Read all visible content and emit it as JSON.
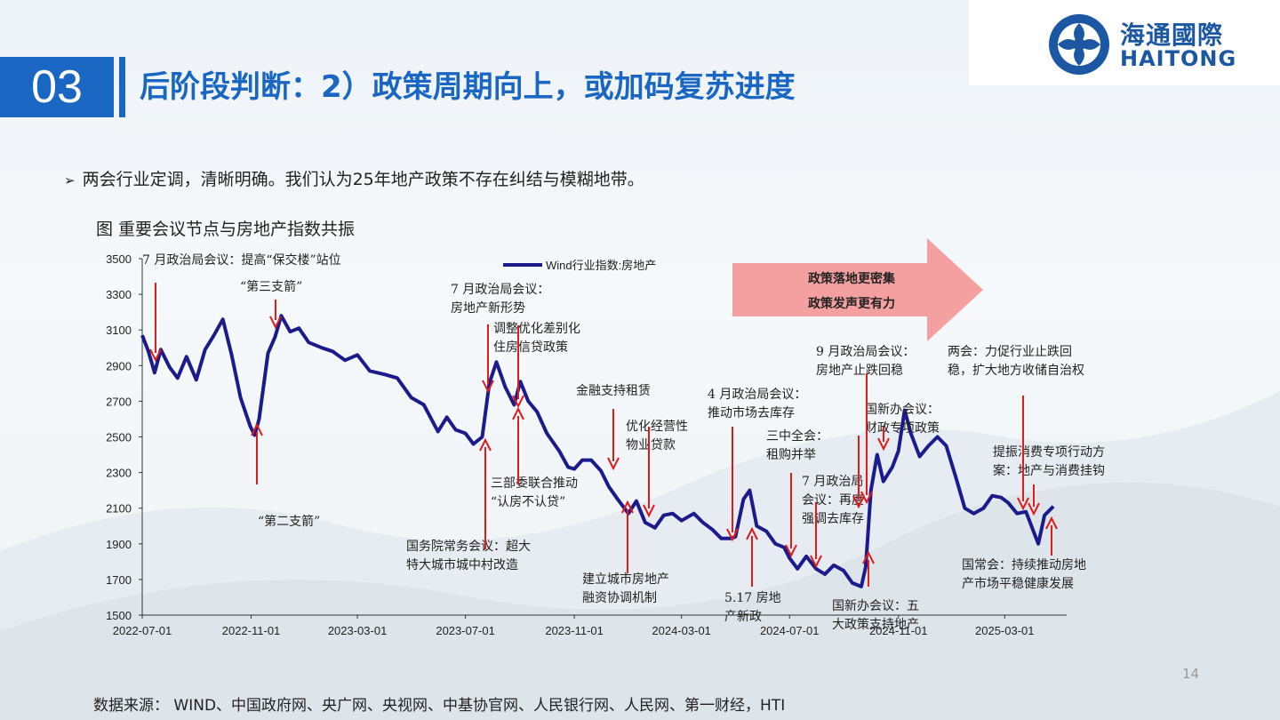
{
  "logo": {
    "cn": "海通國際",
    "en": "HAITONG"
  },
  "section": {
    "number": "03",
    "title": "后阶段判断：2）政策周期向上，或加码复苏进度"
  },
  "bullet": "两会行业定调，清晰明确。我们认为25年地产政策不存在纠结与模糊地带。",
  "figure_title": "图 重要会议节点与房地产指数共振",
  "page_number": "14",
  "source": "数据来源： WIND、中国政府网、央广网、央视网、中基协官网、人民银行网、人民网、第一财经，HTI",
  "colors": {
    "brand": "#1967c2",
    "series": "#1c1b8c",
    "arrow": "#e11a1a",
    "banner": "#f5a0a0"
  },
  "chart_data": {
    "type": "line",
    "legend": "Wind行业指数:房地产",
    "ylim": [
      1500,
      3500
    ],
    "yticks": [
      1500,
      1700,
      1900,
      2100,
      2300,
      2500,
      2700,
      2900,
      3100,
      3300,
      3500
    ],
    "xticks": [
      "2022-07-01",
      "2022-11-01",
      "2023-03-01",
      "2023-07-01",
      "2023-11-01",
      "2024-03-01",
      "2024-07-01",
      "2024-11-01",
      "2025-03-01"
    ],
    "series": [
      {
        "name": "Wind行业指数:房地产",
        "points": [
          [
            "2022-07-01",
            3070
          ],
          [
            "2022-07-08",
            2980
          ],
          [
            "2022-07-15",
            2860
          ],
          [
            "2022-07-22",
            2990
          ],
          [
            "2022-08-01",
            2890
          ],
          [
            "2022-08-10",
            2830
          ],
          [
            "2022-08-20",
            2950
          ],
          [
            "2022-08-31",
            2820
          ],
          [
            "2022-09-10",
            2990
          ],
          [
            "2022-09-20",
            3070
          ],
          [
            "2022-09-30",
            3160
          ],
          [
            "2022-10-10",
            2960
          ],
          [
            "2022-10-20",
            2720
          ],
          [
            "2022-10-31",
            2560
          ],
          [
            "2022-11-05",
            2510
          ],
          [
            "2022-11-10",
            2600
          ],
          [
            "2022-11-20",
            2970
          ],
          [
            "2022-11-28",
            3060
          ],
          [
            "2022-12-05",
            3180
          ],
          [
            "2022-12-15",
            3090
          ],
          [
            "2022-12-25",
            3110
          ],
          [
            "2023-01-05",
            3030
          ],
          [
            "2023-01-20",
            3000
          ],
          [
            "2023-02-01",
            2980
          ],
          [
            "2023-02-15",
            2930
          ],
          [
            "2023-03-01",
            2960
          ],
          [
            "2023-03-15",
            2870
          ],
          [
            "2023-04-01",
            2850
          ],
          [
            "2023-04-15",
            2830
          ],
          [
            "2023-05-01",
            2720
          ],
          [
            "2023-05-15",
            2680
          ],
          [
            "2023-05-31",
            2530
          ],
          [
            "2023-06-10",
            2610
          ],
          [
            "2023-06-20",
            2540
          ],
          [
            "2023-07-01",
            2520
          ],
          [
            "2023-07-10",
            2460
          ],
          [
            "2023-07-20",
            2500
          ],
          [
            "2023-07-28",
            2800
          ],
          [
            "2023-08-05",
            2920
          ],
          [
            "2023-08-15",
            2780
          ],
          [
            "2023-08-25",
            2680
          ],
          [
            "2023-09-01",
            2810
          ],
          [
            "2023-09-10",
            2700
          ],
          [
            "2023-09-20",
            2640
          ],
          [
            "2023-10-01",
            2520
          ],
          [
            "2023-10-15",
            2420
          ],
          [
            "2023-10-25",
            2330
          ],
          [
            "2023-11-01",
            2320
          ],
          [
            "2023-11-10",
            2370
          ],
          [
            "2023-11-20",
            2370
          ],
          [
            "2023-12-01",
            2310
          ],
          [
            "2023-12-10",
            2220
          ],
          [
            "2023-12-20",
            2150
          ],
          [
            "2024-01-01",
            2070
          ],
          [
            "2024-01-10",
            2140
          ],
          [
            "2024-01-20",
            2020
          ],
          [
            "2024-01-31",
            1990
          ],
          [
            "2024-02-10",
            2060
          ],
          [
            "2024-02-20",
            2070
          ],
          [
            "2024-03-01",
            2030
          ],
          [
            "2024-03-15",
            2070
          ],
          [
            "2024-03-25",
            2020
          ],
          [
            "2024-04-05",
            1980
          ],
          [
            "2024-04-15",
            1930
          ],
          [
            "2024-04-25",
            1930
          ],
          [
            "2024-05-01",
            1940
          ],
          [
            "2024-05-10",
            2150
          ],
          [
            "2024-05-17",
            2200
          ],
          [
            "2024-05-25",
            2000
          ],
          [
            "2024-06-05",
            1970
          ],
          [
            "2024-06-15",
            1900
          ],
          [
            "2024-06-25",
            1880
          ],
          [
            "2024-07-01",
            1820
          ],
          [
            "2024-07-10",
            1760
          ],
          [
            "2024-07-20",
            1830
          ],
          [
            "2024-07-31",
            1760
          ],
          [
            "2024-08-10",
            1730
          ],
          [
            "2024-08-20",
            1780
          ],
          [
            "2024-08-31",
            1750
          ],
          [
            "2024-09-10",
            1680
          ],
          [
            "2024-09-20",
            1660
          ],
          [
            "2024-09-25",
            1770
          ],
          [
            "2024-10-01",
            2200
          ],
          [
            "2024-10-08",
            2400
          ],
          [
            "2024-10-15",
            2250
          ],
          [
            "2024-10-25",
            2330
          ],
          [
            "2024-11-01",
            2420
          ],
          [
            "2024-11-08",
            2650
          ],
          [
            "2024-11-15",
            2520
          ],
          [
            "2024-11-25",
            2390
          ],
          [
            "2024-12-05",
            2450
          ],
          [
            "2024-12-15",
            2500
          ],
          [
            "2024-12-25",
            2450
          ],
          [
            "2025-01-05",
            2270
          ],
          [
            "2025-01-15",
            2100
          ],
          [
            "2025-01-25",
            2070
          ],
          [
            "2025-02-05",
            2100
          ],
          [
            "2025-02-15",
            2170
          ],
          [
            "2025-02-25",
            2160
          ],
          [
            "2025-03-05",
            2130
          ],
          [
            "2025-03-15",
            2070
          ],
          [
            "2025-03-25",
            2080
          ],
          [
            "2025-04-08",
            1900
          ],
          [
            "2025-04-15",
            2060
          ],
          [
            "2025-04-25",
            2110
          ]
        ]
      }
    ],
    "annotations": [
      {
        "lines": [
          "7 月政治局会议：提高“保交楼”站位"
        ]
      },
      {
        "lines": [
          "“第三支箭”"
        ]
      },
      {
        "lines": [
          "“第二支箭”"
        ]
      },
      {
        "lines": [
          "7 月政治局会议：",
          "房地产新形势"
        ]
      },
      {
        "lines": [
          "调整优化差别化",
          "住房信贷政策"
        ]
      },
      {
        "lines": [
          "金融支持租赁"
        ]
      },
      {
        "lines": [
          "三部委联合推动",
          "“认房不认贷”"
        ]
      },
      {
        "lines": [
          "国务院常务会议：超大",
          "特大城市城中村改造"
        ]
      },
      {
        "lines": [
          "优化经营性",
          "物业贷款"
        ]
      },
      {
        "lines": [
          "建立城市房地产",
          "融资协调机制"
        ]
      },
      {
        "lines": [
          "4 月政治局会议：",
          "推动市场去库存"
        ]
      },
      {
        "lines": [
          "5.17 房地",
          "产新政"
        ]
      },
      {
        "lines": [
          "三中全会：",
          "租购并举"
        ]
      },
      {
        "lines": [
          "7 月政治局",
          "会议：再度",
          "强调去库存"
        ]
      },
      {
        "lines": [
          "9 月政治局会议：",
          "房地产止跌回稳"
        ]
      },
      {
        "lines": [
          "国新办会议：",
          "财政专项政策"
        ]
      },
      {
        "lines": [
          "国新办会议：五",
          "大政策支持地产"
        ]
      },
      {
        "lines": [
          "两会：力促行业止跌回",
          "稳，扩大地方收储自治权"
        ]
      },
      {
        "lines": [
          "提振消费专项行动方",
          "案：地产与消费挂钩"
        ]
      },
      {
        "lines": [
          "国常会：持续推动房地",
          "产市场平稳健康发展"
        ]
      }
    ],
    "banner": [
      "政策落地更密集",
      "政策发声更有力"
    ]
  }
}
